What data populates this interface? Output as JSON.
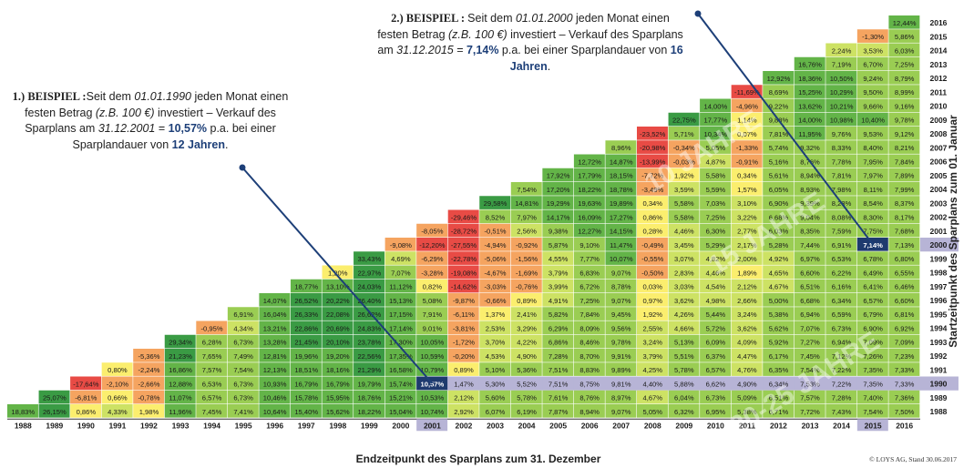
{
  "chart_data": {
    "type": "heatmap",
    "title": "",
    "xlabel": "Endzeitpunkt des Sparplans zum 31. Dezember",
    "ylabel": "Startzeitpunkt des Sparplans zum 01. Januar",
    "x_years": [
      "1988",
      "1989",
      "1990",
      "1991",
      "1992",
      "1993",
      "1994",
      "1995",
      "1996",
      "1997",
      "1998",
      "1999",
      "2000",
      "2001",
      "2002",
      "2003",
      "2004",
      "2005",
      "2006",
      "2007",
      "2008",
      "2009",
      "2010",
      "2011",
      "2012",
      "2013",
      "2014",
      "2015",
      "2016"
    ],
    "start_years": [
      "1988",
      "1989",
      "1990",
      "1991",
      "1992",
      "1993",
      "1994",
      "1995",
      "1996",
      "1997",
      "1998",
      "1999",
      "2000",
      "2001",
      "2002",
      "2003",
      "2004",
      "2005",
      "2006",
      "2007",
      "2008",
      "2009",
      "2010",
      "2011",
      "2012",
      "2013",
      "2014",
      "2015",
      "2016"
    ],
    "highlight": {
      "start_1": "1990",
      "end_1": "2001",
      "value_1": "10,57%",
      "start_2": "2000",
      "end_2": "2015",
      "value_2": "7,14%"
    },
    "rows": [
      {
        "start": "1988",
        "values": [
          "18,83%",
          "26,15%",
          "0,86%",
          "4,33%",
          "1,98%",
          "11,96%",
          "7,45%",
          "7,41%",
          "10,64%",
          "15,40%",
          "15,62%",
          "18,22%",
          "15,04%",
          "10,74%",
          "2,92%",
          "6,07%",
          "6,19%",
          "7,87%",
          "8,94%",
          "9,07%",
          "5,05%",
          "6,32%",
          "6,95%",
          "5,38%",
          "6,71%",
          "7,72%",
          "7,43%",
          "7,54%",
          "7,50%"
        ]
      },
      {
        "start": "1989",
        "values": [
          "",
          "25,07%",
          "-6,81%",
          "0,66%",
          "-0,78%",
          "11,07%",
          "6,57%",
          "6,73%",
          "10,46%",
          "15,78%",
          "15,95%",
          "18,76%",
          "15,21%",
          "10,53%",
          "2,12%",
          "5,60%",
          "5,78%",
          "7,61%",
          "8,76%",
          "8,97%",
          "4,67%",
          "6,04%",
          "6,73%",
          "5,09%",
          "6,51%",
          "7,57%",
          "7,28%",
          "7,40%",
          "7,36%"
        ]
      },
      {
        "start": "1990",
        "values": [
          "",
          "",
          "-17,64%",
          "-2,10%",
          "-2,66%",
          "12,88%",
          "6,53%",
          "6,73%",
          "10,93%",
          "16,79%",
          "16,79%",
          "19,79%",
          "15,74%",
          "10,57%",
          "1,47%",
          "5,30%",
          "5,52%",
          "7,51%",
          "8,75%",
          "9,81%",
          "4,40%",
          "5,88%",
          "6,62%",
          "4,90%",
          "6,34%",
          "7,53%",
          "7,22%",
          "7,35%",
          "7,33%"
        ]
      },
      {
        "start": "1991",
        "values": [
          "",
          "",
          "",
          "0,80%",
          "-2,24%",
          "16,86%",
          "7,57%",
          "7,54%",
          "12,13%",
          "18,51%",
          "18,16%",
          "21,29%",
          "16,58%",
          "10,79%",
          "0,89%",
          "5,10%",
          "5,36%",
          "7,51%",
          "8,83%",
          "9,89%",
          "4,25%",
          "5,78%",
          "6,57%",
          "4,76%",
          "6,35%",
          "7,54%",
          "7,22%",
          "7,35%",
          "7,33%"
        ]
      },
      {
        "start": "1992",
        "values": [
          "",
          "",
          "",
          "",
          "-5,36%",
          "21,23%",
          "7,65%",
          "7,49%",
          "12,81%",
          "19,96%",
          "19,20%",
          "22,56%",
          "17,35%",
          "10,59%",
          "-0,20%",
          "4,53%",
          "4,90%",
          "7,28%",
          "8,70%",
          "9,91%",
          "3,79%",
          "5,51%",
          "6,37%",
          "4,47%",
          "6,17%",
          "7,45%",
          "7,12%",
          "7,26%",
          "7,23%"
        ]
      },
      {
        "start": "1993",
        "values": [
          "",
          "",
          "",
          "",
          "",
          "29,34%",
          "6,28%",
          "6,73%",
          "13,28%",
          "21,45%",
          "20,10%",
          "23,78%",
          "17,30%",
          "10,05%",
          "-1,72%",
          "3,70%",
          "4,22%",
          "6,86%",
          "8,46%",
          "9,78%",
          "3,24%",
          "5,13%",
          "6,09%",
          "4,09%",
          "5,92%",
          "7,27%",
          "6,94%",
          "7,09%",
          "7,09%"
        ]
      },
      {
        "start": "1994",
        "values": [
          "",
          "",
          "",
          "",
          "",
          "",
          "-0,95%",
          "4,34%",
          "13,21%",
          "22,86%",
          "20,69%",
          "24,83%",
          "17,14%",
          "9,01%",
          "-3,81%",
          "2,53%",
          "3,29%",
          "6,29%",
          "8,09%",
          "9,56%",
          "2,55%",
          "4,66%",
          "5,72%",
          "3,62%",
          "5,62%",
          "7,07%",
          "6,73%",
          "6,90%",
          "6,92%"
        ]
      },
      {
        "start": "1995",
        "values": [
          "",
          "",
          "",
          "",
          "",
          "",
          "",
          "6,91%",
          "16,04%",
          "26,33%",
          "22,08%",
          "26,62%",
          "17,15%",
          "7,91%",
          "-6,11%",
          "1,37%",
          "2,41%",
          "5,82%",
          "7,84%",
          "9,45%",
          "1,92%",
          "4,26%",
          "5,44%",
          "3,24%",
          "5,38%",
          "6,94%",
          "6,59%",
          "6,79%",
          "6,81%"
        ]
      },
      {
        "start": "1996",
        "values": [
          "",
          "",
          "",
          "",
          "",
          "",
          "",
          "",
          "14,07%",
          "26,52%",
          "20,22%",
          "26,40%",
          "15,13%",
          "5,08%",
          "-9,87%",
          "-0,66%",
          "0,89%",
          "4,91%",
          "7,25%",
          "9,07%",
          "0,97%",
          "3,62%",
          "4,98%",
          "2,66%",
          "5,00%",
          "6,68%",
          "6,34%",
          "6,57%",
          "6,60%"
        ]
      },
      {
        "start": "1997",
        "values": [
          "",
          "",
          "",
          "",
          "",
          "",
          "",
          "",
          "",
          "18,77%",
          "13,10%",
          "24,03%",
          "11,12%",
          "0,82%",
          "-14,62%",
          "-3,03%",
          "-0,76%",
          "3,99%",
          "6,72%",
          "8,78%",
          "0,03%",
          "3,03%",
          "4,54%",
          "2,12%",
          "4,67%",
          "6,51%",
          "6,16%",
          "6,41%",
          "6,46%"
        ]
      },
      {
        "start": "1998",
        "values": [
          "",
          "",
          "",
          "",
          "",
          "",
          "",
          "",
          "",
          "",
          "1,20%",
          "22,97%",
          "7,07%",
          "-3,28%",
          "-19,08%",
          "-4,67%",
          "-1,69%",
          "3,79%",
          "6,83%",
          "9,07%",
          "-0,50%",
          "2,83%",
          "4,46%",
          "1,89%",
          "4,65%",
          "6,60%",
          "6,22%",
          "6,49%",
          "6,55%"
        ]
      },
      {
        "start": "1999",
        "values": [
          "",
          "",
          "",
          "",
          "",
          "",
          "",
          "",
          "",
          "",
          "",
          "33,43%",
          "4,69%",
          "-6,29%",
          "-22,78%",
          "-5,06%",
          "-1,56%",
          "4,55%",
          "7,77%",
          "10,07%",
          "-0,55%",
          "3,07%",
          "4,82%",
          "2,00%",
          "4,92%",
          "6,97%",
          "6,53%",
          "6,78%",
          "6,80%"
        ]
      },
      {
        "start": "2000",
        "values": [
          "",
          "",
          "",
          "",
          "",
          "",
          "",
          "",
          "",
          "",
          "",
          "",
          "-9,08%",
          "-12,20%",
          "-27,55%",
          "-4,94%",
          "-0,92%",
          "5,87%",
          "9,10%",
          "11,47%",
          "-0,49%",
          "3,45%",
          "5,29%",
          "2,17%",
          "5,28%",
          "7,44%",
          "6,91%",
          "7,14%",
          "7,13%"
        ]
      },
      {
        "start": "2001",
        "values": [
          "",
          "",
          "",
          "",
          "",
          "",
          "",
          "",
          "",
          "",
          "",
          "",
          "",
          "-8,05%",
          "-28,72%",
          "-0,51%",
          "2,56%",
          "9,38%",
          "12,27%",
          "14,15%",
          "0,28%",
          "4,46%",
          "6,30%",
          "2,77%",
          "6,03%",
          "8,35%",
          "7,59%",
          "7,75%",
          "7,68%"
        ]
      },
      {
        "start": "2002",
        "values": [
          "",
          "",
          "",
          "",
          "",
          "",
          "",
          "",
          "",
          "",
          "",
          "",
          "",
          "",
          "-29,46%",
          "8,52%",
          "7,97%",
          "14,17%",
          "16,09%",
          "17,27%",
          "0,86%",
          "5,58%",
          "7,25%",
          "3,22%",
          "6,68%",
          "9,04%",
          "8,08%",
          "8,30%",
          "8,17%"
        ]
      },
      {
        "start": "2003",
        "values": [
          "",
          "",
          "",
          "",
          "",
          "",
          "",
          "",
          "",
          "",
          "",
          "",
          "",
          "",
          "",
          "29,58%",
          "14,81%",
          "19,29%",
          "19,63%",
          "19,89%",
          "0,34%",
          "5,58%",
          "7,03%",
          "3,10%",
          "6,90%",
          "9,39%",
          "8,28%",
          "8,54%",
          "8,37%"
        ]
      },
      {
        "start": "2004",
        "values": [
          "",
          "",
          "",
          "",
          "",
          "",
          "",
          "",
          "",
          "",
          "",
          "",
          "",
          "",
          "",
          "",
          "7,54%",
          "17,20%",
          "18,22%",
          "18,78%",
          "-3,49%",
          "3,59%",
          "5,59%",
          "1,57%",
          "6,05%",
          "8,93%",
          "7,98%",
          "8,11%",
          "7,99%"
        ]
      },
      {
        "start": "2005",
        "values": [
          "",
          "",
          "",
          "",
          "",
          "",
          "",
          "",
          "",
          "",
          "",
          "",
          "",
          "",
          "",
          "",
          "",
          "17,92%",
          "17,79%",
          "18,15%",
          "-7,72%",
          "1,92%",
          "5,58%",
          "0,34%",
          "5,61%",
          "8,94%",
          "7,81%",
          "7,97%",
          "7,89%"
        ]
      },
      {
        "start": "2006",
        "values": [
          "",
          "",
          "",
          "",
          "",
          "",
          "",
          "",
          "",
          "",
          "",
          "",
          "",
          "",
          "",
          "",
          "",
          "",
          "12,72%",
          "14,87%",
          "-13,99%",
          "-0,03%",
          "4,87%",
          "-0,91%",
          "5,16%",
          "8,76%",
          "7,78%",
          "7,95%",
          "7,84%"
        ]
      },
      {
        "start": "2007",
        "values": [
          "",
          "",
          "",
          "",
          "",
          "",
          "",
          "",
          "",
          "",
          "",
          "",
          "",
          "",
          "",
          "",
          "",
          "",
          "",
          "8,96%",
          "-20,98%",
          "-0,34%",
          "5,05%",
          "-1,33%",
          "5,74%",
          "9,32%",
          "8,33%",
          "8,40%",
          "8,21%"
        ]
      },
      {
        "start": "2008",
        "values": [
          "",
          "",
          "",
          "",
          "",
          "",
          "",
          "",
          "",
          "",
          "",
          "",
          "",
          "",
          "",
          "",
          "",
          "",
          "",
          "",
          "-23,52%",
          "5,71%",
          "10,34%",
          "0,07%",
          "7,81%",
          "11,95%",
          "9,76%",
          "9,53%",
          "9,12%"
        ]
      },
      {
        "start": "2009",
        "values": [
          "",
          "",
          "",
          "",
          "",
          "",
          "",
          "",
          "",
          "",
          "",
          "",
          "",
          "",
          "",
          "",
          "",
          "",
          "",
          "",
          "",
          "22,75%",
          "17,77%",
          "1,14%",
          "9,88%",
          "14,00%",
          "10,98%",
          "10,40%",
          "9,78%"
        ]
      },
      {
        "start": "2010",
        "values": [
          "",
          "",
          "",
          "",
          "",
          "",
          "",
          "",
          "",
          "",
          "",
          "",
          "",
          "",
          "",
          "",
          "",
          "",
          "",
          "",
          "",
          "",
          "14,00%",
          "-4,96%",
          "9,22%",
          "13,62%",
          "10,21%",
          "9,66%",
          "9,16%"
        ]
      },
      {
        "start": "2011",
        "values": [
          "",
          "",
          "",
          "",
          "",
          "",
          "",
          "",
          "",
          "",
          "",
          "",
          "",
          "",
          "",
          "",
          "",
          "",
          "",
          "",
          "",
          "",
          "",
          "-11,69%",
          "8,69%",
          "15,25%",
          "10,29%",
          "9,50%",
          "8,99%"
        ]
      },
      {
        "start": "2012",
        "values": [
          "",
          "",
          "",
          "",
          "",
          "",
          "",
          "",
          "",
          "",
          "",
          "",
          "",
          "",
          "",
          "",
          "",
          "",
          "",
          "",
          "",
          "",
          "",
          "",
          "12,92%",
          "18,36%",
          "10,50%",
          "9,24%",
          "8,79%"
        ]
      },
      {
        "start": "2013",
        "values": [
          "",
          "",
          "",
          "",
          "",
          "",
          "",
          "",
          "",
          "",
          "",
          "",
          "",
          "",
          "",
          "",
          "",
          "",
          "",
          "",
          "",
          "",
          "",
          "",
          "",
          "16,76%",
          "7,19%",
          "6,70%",
          "7,25%"
        ]
      },
      {
        "start": "2014",
        "values": [
          "",
          "",
          "",
          "",
          "",
          "",
          "",
          "",
          "",
          "",
          "",
          "",
          "",
          "",
          "",
          "",
          "",
          "",
          "",
          "",
          "",
          "",
          "",
          "",
          "",
          "",
          "2,24%",
          "3,53%",
          "6,03%"
        ]
      },
      {
        "start": "2015",
        "values": [
          "",
          "",
          "",
          "",
          "",
          "",
          "",
          "",
          "",
          "",
          "",
          "",
          "",
          "",
          "",
          "",
          "",
          "",
          "",
          "",
          "",
          "",
          "",
          "",
          "",
          "",
          "",
          "-1,30%",
          "5,86%"
        ]
      },
      {
        "start": "2016",
        "values": [
          "",
          "",
          "",
          "",
          "",
          "",
          "",
          "",
          "",
          "",
          "",
          "",
          "",
          "",
          "",
          "",
          "",
          "",
          "",
          "",
          "",
          "",
          "",
          "",
          "",
          "",
          "",
          "",
          "12,44%"
        ]
      }
    ],
    "colors": {
      "strong_green": "#3a9b44",
      "green": "#63b448",
      "light_green": "#9acd53",
      "yellow_green": "#cde264",
      "yellow": "#fbee6e",
      "orange": "#f5a460",
      "red": "#e84b45",
      "highlight_cell": "#1e3a6e",
      "highlight_band": "#b7b4d6"
    }
  },
  "annotations": {
    "note1": {
      "heading": "1.) BEISPIEL :",
      "t1": "Seit dem ",
      "d1": "01.01.1990",
      "t2": " jeden Monat einen festen Betrag ",
      "amt": "(z.B. 100 €)",
      "t3": " investiert – Verkauf des Sparplans am ",
      "d2": "31.12.2001",
      "t4": " = ",
      "pct": "10,57%",
      "t5": " p.a. bei einer Sparplandauer von ",
      "dur": "12 Jahren",
      "t6": "."
    },
    "note2": {
      "heading": "2.) BEISPIEL : ",
      "t1": "Seit dem ",
      "d1": "01.01.2000",
      "t2": " jeden Monat einen festen Betrag ",
      "amt": "(z.B. 100 €)",
      "t3": " investiert – Verkauf des Sparplans am ",
      "d2": "31.12.2015",
      "t4": " = ",
      "pct": "7,14%",
      "t5": " p.a. bei einer Sparplandauer von ",
      "dur": "16 Jahren",
      "t6": "."
    }
  },
  "credit": "© LOYS AG, Stand 30.06.2017",
  "watermarks": [
    "10 JAHRE",
    "15 JAHRE",
    "20-25 JAHRE"
  ]
}
